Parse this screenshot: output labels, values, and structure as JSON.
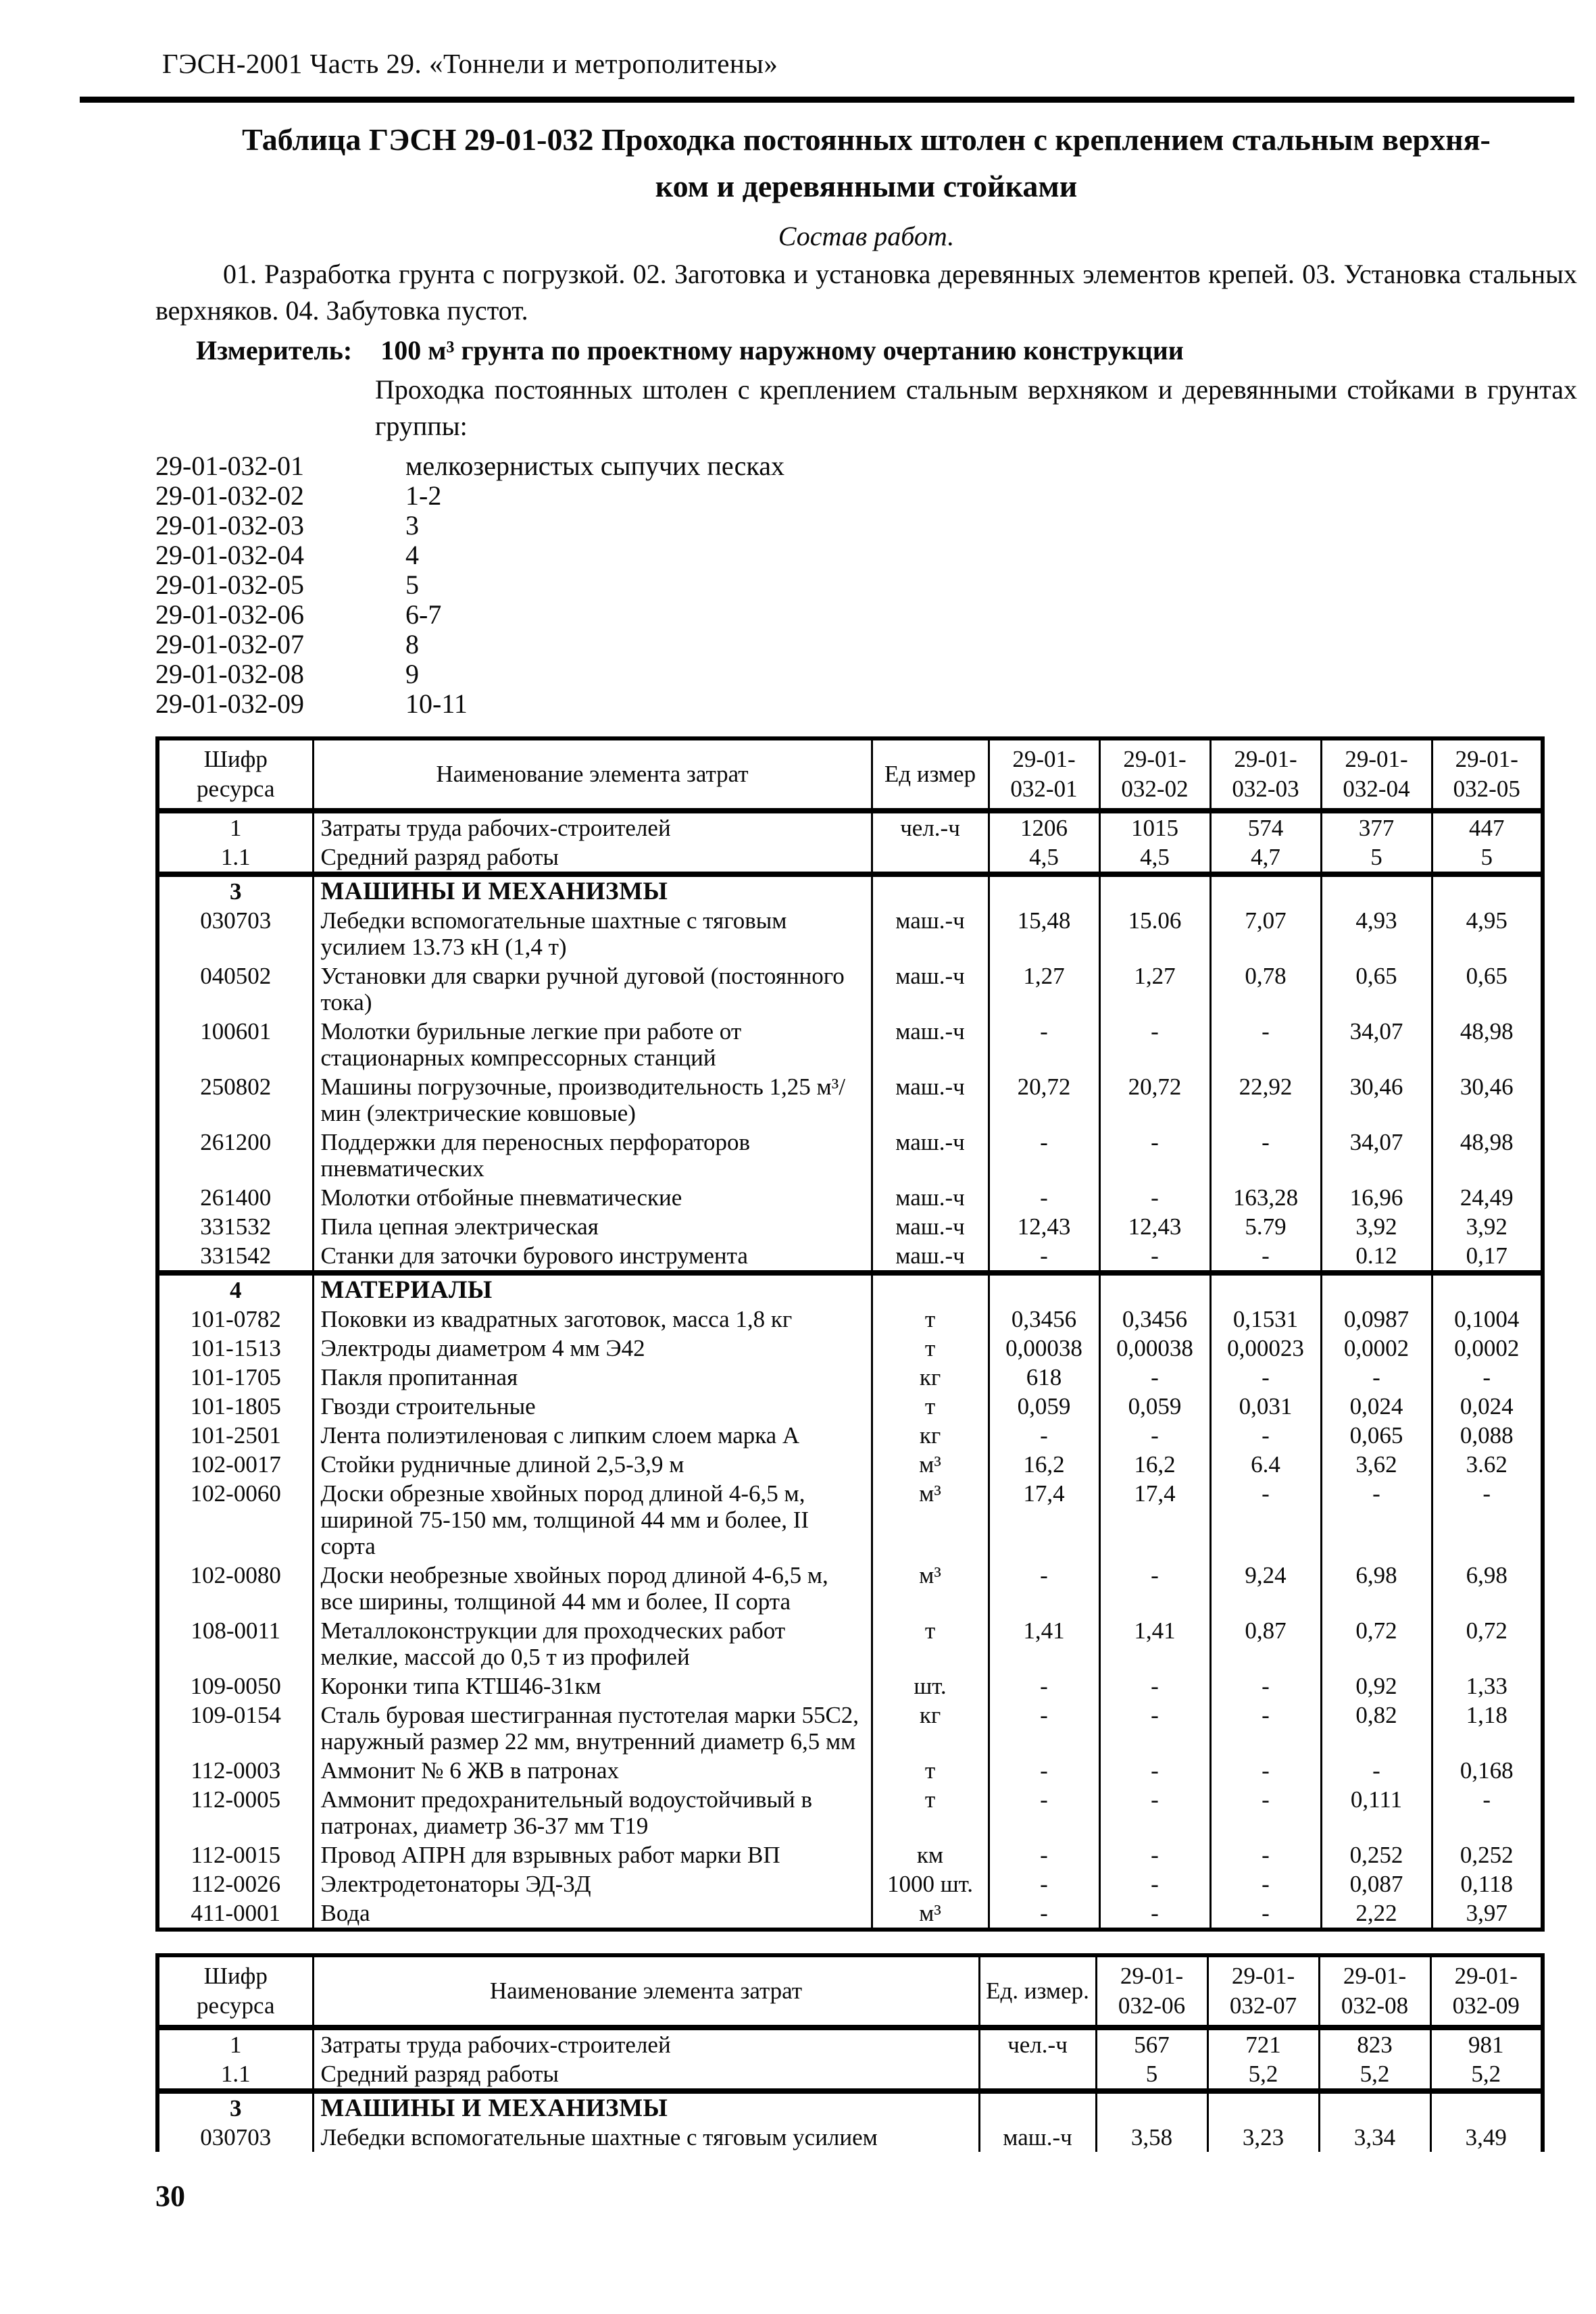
{
  "colors": {
    "ink": "#000000",
    "paper": "#ffffff"
  },
  "page": {
    "header": "ГЭСН-2001 Часть 29. «Тоннели и метрополитены»",
    "page_number": "30"
  },
  "title": {
    "line1": "Таблица ГЭСН 29-01-032 Проходка постоянных штолен с креплением стальным верхня-",
    "line2": "ком и деревянными стойками"
  },
  "sostav": {
    "label": "Состав работ.",
    "text": "01. Разработка грунта с погрузкой. 02. Заготовка и установка деревянных элементов крепей. 03. Установка стальных верхняков. 04. Забутовка пустот."
  },
  "izmeritel": {
    "label": "Измеритель:",
    "text": "100 м³ грунта по проектному наружному очертанию конструкции"
  },
  "intro": "Проходка постоянных штолен с креплением стальным верхняком и деревянными стойками в грунтах группы:",
  "variants": [
    {
      "code": "29-01-032-01",
      "desc": "мелкозернистых сыпучих песках"
    },
    {
      "code": "29-01-032-02",
      "desc": "1-2"
    },
    {
      "code": "29-01-032-03",
      "desc": "3"
    },
    {
      "code": "29-01-032-04",
      "desc": "4"
    },
    {
      "code": "29-01-032-05",
      "desc": "5"
    },
    {
      "code": "29-01-032-06",
      "desc": "6-7"
    },
    {
      "code": "29-01-032-07",
      "desc": "8"
    },
    {
      "code": "29-01-032-08",
      "desc": "9"
    },
    {
      "code": "29-01-032-09",
      "desc": "10-11"
    }
  ],
  "table1": {
    "headers": {
      "resource": "Шифр ресурса",
      "name": "Наименование элемента затрат",
      "unit": "Ед  измер"
    },
    "columns": [
      {
        "l1": "29-01-",
        "l2": "032-01"
      },
      {
        "l1": "29-01-",
        "l2": "032-02"
      },
      {
        "l1": "29-01-",
        "l2": "032-03"
      },
      {
        "l1": "29-01-",
        "l2": "032-04"
      },
      {
        "l1": "29-01-",
        "l2": "032-05"
      }
    ],
    "rows": [
      {
        "code": "1",
        "name": "Затраты труда рабочих-строителей",
        "unit": "чел.-ч",
        "values": [
          "1206",
          "1015",
          "574",
          "377",
          "447"
        ]
      },
      {
        "code": "1.1",
        "name": "Средний разряд работы",
        "unit": "",
        "values": [
          "4,5",
          "4,5",
          "4,7",
          "5",
          "5"
        ],
        "groupEnd": true
      },
      {
        "code": "3",
        "name": "МАШИНЫ И МЕХАНИЗМЫ",
        "unit": "",
        "section": true,
        "values": [
          "",
          "",
          "",
          "",
          ""
        ]
      },
      {
        "code": "030703",
        "name": "Лебедки вспомогательные шахтные с тяговым усилием 13.73 кН (1,4 т)",
        "unit": "маш.-ч",
        "values": [
          "15,48",
          "15.06",
          "7,07",
          "4,93",
          "4,95"
        ]
      },
      {
        "code": "040502",
        "name": "Установки для сварки ручной дуговой (постоянного тока)",
        "unit": "маш.-ч",
        "values": [
          "1,27",
          "1,27",
          "0,78",
          "0,65",
          "0,65"
        ]
      },
      {
        "code": "100601",
        "name": "Молотки бурильные легкие при работе от стационарных компрессорных станций",
        "unit": "маш.-ч",
        "values": [
          "-",
          "-",
          "-",
          "34,07",
          "48,98"
        ]
      },
      {
        "code": "250802",
        "name": "Машины погрузочные, производительность 1,25 м³/мин (электрические ковшовые)",
        "unit": "маш.-ч",
        "values": [
          "20,72",
          "20,72",
          "22,92",
          "30,46",
          "30,46"
        ]
      },
      {
        "code": "261200",
        "name": "Поддержки для переносных перфораторов пневматических",
        "unit": "маш.-ч",
        "values": [
          "-",
          "-",
          "-",
          "34,07",
          "48,98"
        ]
      },
      {
        "code": "261400",
        "name": "Молотки отбойные пневматические",
        "unit": "маш.-ч",
        "values": [
          "-",
          "-",
          "163,28",
          "16,96",
          "24,49"
        ]
      },
      {
        "code": "331532",
        "name": "Пила цепная электрическая",
        "unit": "маш.-ч",
        "values": [
          "12,43",
          "12,43",
          "5.79",
          "3,92",
          "3,92"
        ]
      },
      {
        "code": "331542",
        "name": "Станки для заточки бурового инструмента",
        "unit": "маш.-ч",
        "values": [
          "-",
          "-",
          "-",
          "0.12",
          "0,17"
        ],
        "groupEnd": true
      },
      {
        "code": "4",
        "name": "МАТЕРИАЛЫ",
        "unit": "",
        "section": true,
        "values": [
          "",
          "",
          "",
          "",
          ""
        ]
      },
      {
        "code": "101-0782",
        "name": "Поковки из квадратных заготовок, масса 1,8 кг",
        "unit": "т",
        "values": [
          "0,3456",
          "0,3456",
          "0,1531",
          "0,0987",
          "0,1004"
        ]
      },
      {
        "code": "101-1513",
        "name": "Электроды диаметром 4 мм Э42",
        "unit": "т",
        "values": [
          "0,00038",
          "0,00038",
          "0,00023",
          "0,0002",
          "0,0002"
        ]
      },
      {
        "code": "101-1705",
        "name": "Пакля пропитанная",
        "unit": "кг",
        "values": [
          "618",
          "-",
          "-",
          "-",
          "-"
        ]
      },
      {
        "code": "101-1805",
        "name": "Гвозди строительные",
        "unit": "т",
        "values": [
          "0,059",
          "0,059",
          "0,031",
          "0,024",
          "0,024"
        ]
      },
      {
        "code": "101-2501",
        "name": "Лента полиэтиленовая с липким слоем марка А",
        "unit": "кг",
        "values": [
          "-",
          "-",
          "-",
          "0,065",
          "0,088"
        ]
      },
      {
        "code": "102-0017",
        "name": "Стойки рудничные длиной 2,5-3,9 м",
        "unit": "м³",
        "values": [
          "16,2",
          "16,2",
          "6.4",
          "3,62",
          "3.62"
        ]
      },
      {
        "code": "102-0060",
        "name": "Доски обрезные хвойных пород длиной 4-6,5 м, шириной 75-150 мм, толщиной 44 мм и более, II сорта",
        "unit": "м³",
        "values": [
          "17,4",
          "17,4",
          "-",
          "-",
          "-"
        ]
      },
      {
        "code": "102-0080",
        "name": "Доски необрезные хвойных пород длиной 4-6,5 м, все ширины, толщиной 44 мм и более, II сорта",
        "unit": "м³",
        "values": [
          "-",
          "-",
          "9,24",
          "6,98",
          "6,98"
        ]
      },
      {
        "code": "108-0011",
        "name": "Металлоконструкции для проходческих работ мелкие, массой до 0,5 т из профилей",
        "unit": "т",
        "values": [
          "1,41",
          "1,41",
          "0,87",
          "0,72",
          "0,72"
        ]
      },
      {
        "code": "109-0050",
        "name": "Коронки типа КТШ46-31км",
        "unit": "шт.",
        "values": [
          "-",
          "-",
          "-",
          "0,92",
          "1,33"
        ]
      },
      {
        "code": "109-0154",
        "name": "Сталь буровая шестигранная пустотелая марки 55С2, наружный размер 22 мм, внутренний диаметр 6,5 мм",
        "unit": "кг",
        "values": [
          "-",
          "-",
          "-",
          "0,82",
          "1,18"
        ]
      },
      {
        "code": "112-0003",
        "name": "Аммонит № 6 ЖВ в патронах",
        "unit": "т",
        "values": [
          "-",
          "-",
          "-",
          "-",
          "0,168"
        ]
      },
      {
        "code": "112-0005",
        "name": "Аммонит предохранительный водоустойчивый в патронах, диаметр 36-37 мм Т19",
        "unit": "т",
        "values": [
          "-",
          "-",
          "-",
          "0,111",
          "-"
        ]
      },
      {
        "code": "112-0015",
        "name": "Провод АПРН для взрывных работ марки ВП",
        "unit": "км",
        "values": [
          "-",
          "-",
          "-",
          "0,252",
          "0,252"
        ]
      },
      {
        "code": "112-0026",
        "name": "Электродетонаторы ЭД-3Д",
        "unit": "1000 шт.",
        "values": [
          "-",
          "-",
          "-",
          "0,087",
          "0,118"
        ]
      },
      {
        "code": "411-0001",
        "name": "Вода",
        "unit": "м³",
        "values": [
          "-",
          "-",
          "-",
          "2,22",
          "3,97"
        ]
      }
    ]
  },
  "table2": {
    "headers": {
      "resource": "Шифр ресурса",
      "name": "Наименование элемента затрат",
      "unit": "Ед. измер."
    },
    "columns": [
      {
        "l1": "29-01-",
        "l2": "032-06"
      },
      {
        "l1": "29-01-",
        "l2": "032-07"
      },
      {
        "l1": "29-01-",
        "l2": "032-08"
      },
      {
        "l1": "29-01-",
        "l2": "032-09"
      }
    ],
    "rows": [
      {
        "code": "1",
        "name": "Затраты труда рабочих-строителей",
        "unit": "чел.-ч",
        "values": [
          "567",
          "721",
          "823",
          "981"
        ]
      },
      {
        "code": "1.1",
        "name": "Средний разряд работы",
        "unit": "",
        "values": [
          "5",
          "5,2",
          "5,2",
          "5,2"
        ],
        "groupEnd": true
      },
      {
        "code": "3",
        "name": "МАШИНЫ И МЕХАНИЗМЫ",
        "unit": "",
        "section": true,
        "values": [
          "",
          "",
          "",
          ""
        ]
      },
      {
        "code": "030703",
        "name": "Лебедки вспомогательные шахтные с тяговым усилием",
        "unit": "маш.-ч",
        "values": [
          "3,58",
          "3,23",
          "3,34",
          "3,49"
        ],
        "cut": true
      }
    ]
  }
}
